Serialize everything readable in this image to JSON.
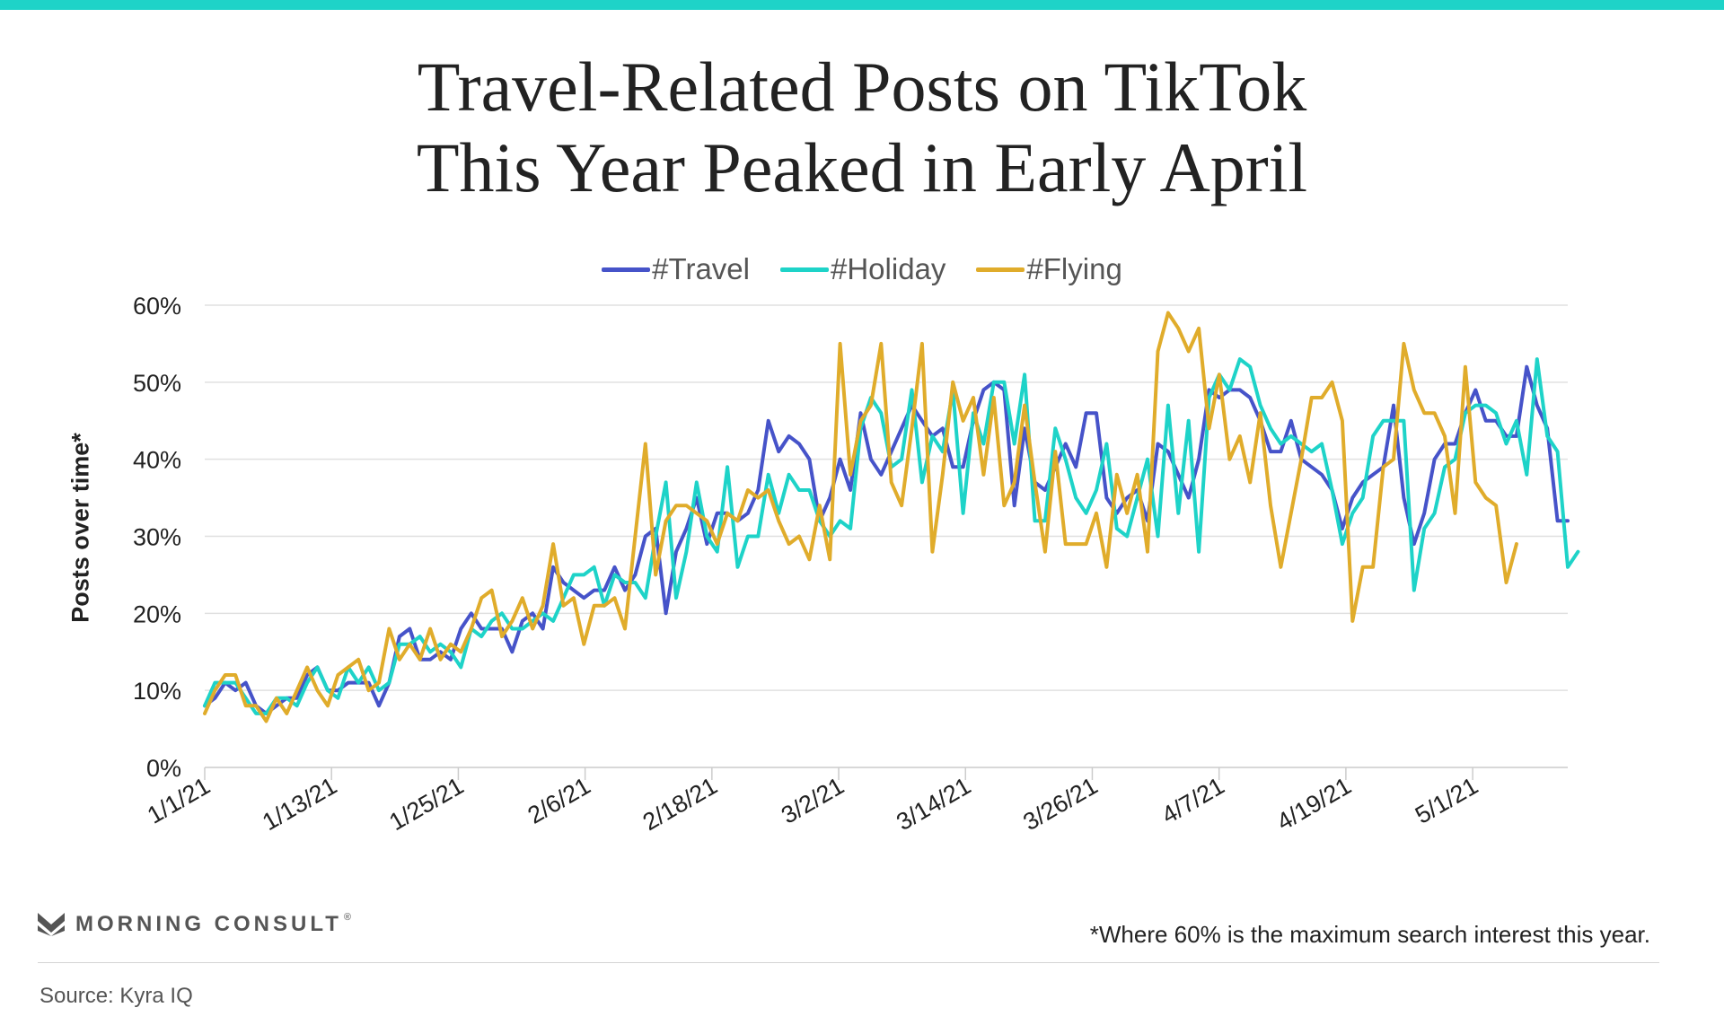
{
  "header": {
    "title_line1": "Travel-Related Posts on TikTok",
    "title_line2": "This Year Peaked in Early April"
  },
  "brand": {
    "name": "MORNING CONSULT",
    "tm": "®"
  },
  "footer": {
    "footnote": "*Where 60% is the maximum search interest this year.",
    "source": "Source: Kyra IQ"
  },
  "colors": {
    "accent_bar": "#1ed3c8",
    "gridline": "#e0e0e0",
    "axis": "#cccccc"
  },
  "chart_data": {
    "type": "line",
    "ylabel": "Posts over time*",
    "ylim": [
      0,
      60
    ],
    "yticks": [
      0,
      10,
      20,
      30,
      40,
      50,
      60
    ],
    "ytick_labels": [
      "0%",
      "10%",
      "20%",
      "30%",
      "40%",
      "50%",
      "60%"
    ],
    "x_start": "1/1/21",
    "x_end": "5/10/21",
    "xtick_labels": [
      "1/1/21",
      "1/13/21",
      "1/25/21",
      "2/6/21",
      "2/18/21",
      "3/2/21",
      "3/14/21",
      "3/26/21",
      "4/7/21",
      "4/19/21",
      "5/1/21"
    ],
    "grid": true,
    "legend_position": "top-center",
    "series": [
      {
        "name": "#Travel",
        "color": "#4653c9",
        "values": [
          8,
          9,
          11,
          10,
          11,
          8,
          7,
          8,
          9,
          9,
          12,
          13,
          10,
          10,
          11,
          11,
          11,
          8,
          11,
          17,
          18,
          14,
          14,
          15,
          14,
          18,
          20,
          18,
          18,
          18,
          15,
          19,
          20,
          18,
          26,
          24,
          23,
          22,
          23,
          23,
          26,
          23,
          25,
          30,
          31,
          20,
          28,
          31,
          35,
          29,
          33,
          33,
          32,
          33,
          36,
          45,
          41,
          43,
          42,
          40,
          32,
          35,
          40,
          36,
          46,
          40,
          38,
          41,
          44,
          47,
          45,
          43,
          44,
          39,
          39,
          45,
          49,
          50,
          49,
          34,
          44,
          37,
          36,
          39,
          42,
          39,
          46,
          46,
          35,
          33,
          35,
          36,
          32,
          42,
          41,
          38,
          35,
          40,
          49,
          48,
          49,
          49,
          48,
          45,
          41,
          41,
          45,
          40,
          39,
          38,
          36,
          31,
          35,
          37,
          38,
          39,
          47,
          35,
          29,
          33,
          40,
          42,
          42,
          46,
          49,
          45,
          45,
          43,
          43,
          52,
          47,
          44,
          32,
          32
        ]
      },
      {
        "name": "#Holiday",
        "color": "#1ed3c8",
        "values": [
          8,
          11,
          11,
          11,
          9,
          7,
          7,
          9,
          9,
          8,
          11,
          13,
          10,
          9,
          13,
          11,
          13,
          10,
          11,
          16,
          16,
          17,
          15,
          16,
          15,
          13,
          18,
          17,
          19,
          20,
          18,
          18,
          19,
          20,
          19,
          22,
          25,
          25,
          26,
          21,
          25,
          24,
          24,
          22,
          30,
          37,
          22,
          28,
          37,
          30,
          28,
          39,
          26,
          30,
          30,
          38,
          33,
          38,
          36,
          36,
          32,
          30,
          32,
          31,
          44,
          48,
          46,
          39,
          40,
          49,
          37,
          43,
          41,
          49,
          33,
          46,
          42,
          50,
          50,
          42,
          51,
          32,
          32,
          44,
          40,
          35,
          33,
          36,
          42,
          31,
          30,
          35,
          40,
          30,
          47,
          33,
          45,
          28,
          48,
          51,
          49,
          53,
          52,
          47,
          44,
          42,
          43,
          42,
          41,
          42,
          36,
          29,
          33,
          35,
          43,
          45,
          45,
          45,
          23,
          31,
          33,
          39,
          40,
          46,
          47,
          47,
          46,
          42,
          45,
          38,
          53,
          43,
          41,
          26,
          28
        ]
      },
      {
        "name": "#Flying",
        "color": "#e0ac2b",
        "values": [
          7,
          10,
          12,
          12,
          8,
          8,
          6,
          9,
          7,
          10,
          13,
          10,
          8,
          12,
          13,
          14,
          10,
          11,
          18,
          14,
          16,
          14,
          18,
          14,
          16,
          15,
          18,
          22,
          23,
          17,
          19,
          22,
          18,
          21,
          29,
          21,
          22,
          16,
          21,
          21,
          22,
          18,
          30,
          42,
          25,
          32,
          34,
          34,
          33,
          32,
          29,
          33,
          32,
          36,
          35,
          36,
          32,
          29,
          30,
          27,
          34,
          27,
          55,
          38,
          45,
          47,
          55,
          37,
          34,
          44,
          55,
          28,
          38,
          50,
          45,
          48,
          38,
          48,
          34,
          37,
          47,
          37,
          28,
          41,
          29,
          29,
          29,
          33,
          26,
          38,
          33,
          38,
          28,
          54,
          59,
          57,
          54,
          57,
          44,
          51,
          40,
          43,
          37,
          46,
          34,
          26,
          33,
          40,
          48,
          48,
          50,
          45,
          19,
          26,
          26,
          39,
          40,
          55,
          49,
          46,
          46,
          43,
          33,
          52,
          37,
          35,
          34,
          24,
          29
        ]
      }
    ]
  }
}
